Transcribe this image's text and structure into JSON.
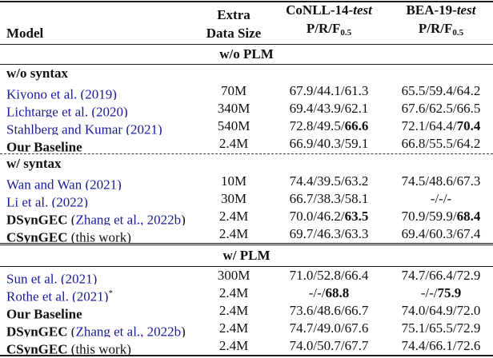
{
  "colors": {
    "citation": "#1b1b9a",
    "text": "#111111",
    "rule": "#1d1d1d"
  },
  "header": {
    "model": "Model",
    "extra_line1": "Extra",
    "extra_line2": "Data Size",
    "conll_prefix": "CoNLL-14-",
    "bea_prefix": "BEA-19-",
    "test_italic": "test",
    "metric": "P/R/F",
    "metric_sub": "0.5"
  },
  "sections": {
    "without_plm": "w/o PLM",
    "with_plm": "w/ PLM"
  },
  "groups": {
    "without_syntax": "w/o syntax",
    "with_syntax": "w/ syntax"
  },
  "rows": [
    {
      "bold": "",
      "pre": "",
      "cite": "Kiyono et al. (2019)",
      "post": "",
      "sup": "",
      "extra": "70M",
      "conll": "67.9/44.1/61.3",
      "conll_bold": "",
      "bea": "65.5/59.4/64.2",
      "bea_bold": ""
    },
    {
      "bold": "",
      "pre": "",
      "cite": "Lichtarge et al. (2020)",
      "post": "",
      "sup": "",
      "extra": "340M",
      "conll": "69.4/43.9/62.1",
      "conll_bold": "",
      "bea": "67.6/62.5/66.5",
      "bea_bold": ""
    },
    {
      "bold": "",
      "pre": "",
      "cite": "Stahlberg and Kumar (2021)",
      "post": "",
      "sup": "",
      "extra": "540M",
      "conll": "72.8/49.5/",
      "conll_bold": "66.6",
      "bea": "72.1/64.4/",
      "bea_bold": "70.4"
    },
    {
      "bold": "Our Baseline",
      "pre": "",
      "cite": "",
      "post": "",
      "sup": "",
      "extra": "2.4M",
      "conll": "66.9/40.3/59.1",
      "conll_bold": "",
      "bea": "66.8/55.5/64.2",
      "bea_bold": ""
    },
    {
      "bold": "",
      "pre": "",
      "cite": "Wan and Wan (2021)",
      "post": "",
      "sup": "",
      "extra": "10M",
      "conll": "74.4/39.5/63.2",
      "conll_bold": "",
      "bea": "74.5/48.6/67.3",
      "bea_bold": ""
    },
    {
      "bold": "",
      "pre": "",
      "cite": "Li et al. (2022)",
      "post": "",
      "sup": "",
      "extra": "30M",
      "conll": "66.7/38.3/58.1",
      "conll_bold": "",
      "bea": "-/-/-",
      "bea_bold": ""
    },
    {
      "bold": "DSynGEC",
      "pre": " (",
      "cite": "Zhang et al., 2022b",
      "post": ")",
      "sup": "",
      "extra": "2.4M",
      "conll": "70.0/46.2/",
      "conll_bold": "63.5",
      "bea": "70.9/59.9/",
      "bea_bold": "68.4"
    },
    {
      "bold": "CSynGEC",
      "pre": " (this work)",
      "cite": "",
      "post": "",
      "sup": "",
      "extra": "2.4M",
      "conll": "69.7/46.3/63.3",
      "conll_bold": "",
      "bea": "69.4/60.3/67.4",
      "bea_bold": ""
    },
    {
      "bold": "",
      "pre": "",
      "cite": "Sun et al. (2021)",
      "post": "",
      "sup": "",
      "extra": "300M",
      "conll": "71.0/52.8/66.4",
      "conll_bold": "",
      "bea": "74.7/66.4/72.9",
      "bea_bold": ""
    },
    {
      "bold": "",
      "pre": "",
      "cite": "Rothe et al. (2021)",
      "post": "",
      "sup": "*",
      "extra": "2.4M",
      "conll": "-/-/",
      "conll_bold": "68.8",
      "bea": "-/-/",
      "bea_bold": "75.9"
    },
    {
      "bold": "Our Baseline",
      "pre": "",
      "cite": "",
      "post": "",
      "sup": "",
      "extra": "2.4M",
      "conll": "73.6/48.6/66.7",
      "conll_bold": "",
      "bea": "74.0/64.9/72.0",
      "bea_bold": ""
    },
    {
      "bold": "DSynGEC",
      "pre": " (",
      "cite": "Zhang et al., 2022b",
      "post": ")",
      "sup": "",
      "extra": "2.4M",
      "conll": "74.7/49.0/67.6",
      "conll_bold": "",
      "bea": "75.1/65.5/72.9",
      "bea_bold": ""
    },
    {
      "bold": "CSynGEC",
      "pre": " (this work)",
      "cite": "",
      "post": "",
      "sup": "",
      "extra": "2.4M",
      "conll": "74.0/50.7/67.7",
      "conll_bold": "",
      "bea": "74.4/66.1/72.6",
      "bea_bold": ""
    }
  ]
}
